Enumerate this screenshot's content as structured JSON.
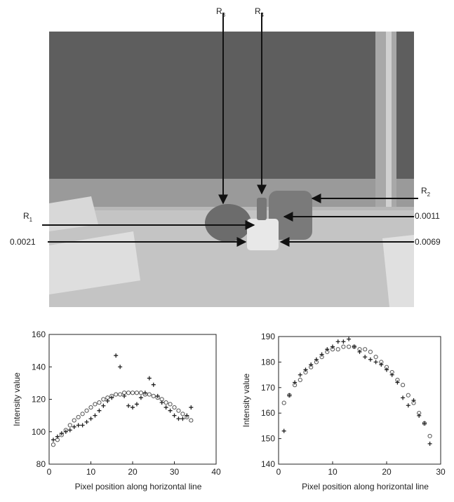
{
  "photo_labels": [
    {
      "text": "R",
      "sub": "3"
    },
    {
      "text": "R",
      "sub": "4"
    },
    {
      "text": "R",
      "sub": "2"
    },
    {
      "text": "R",
      "sub": "1"
    }
  ],
  "photo_values": [
    "0.0011",
    "0.0021",
    "0.0069"
  ],
  "chart_data": [
    {
      "type": "scatter",
      "xlabel": "Pixel position along horizontal line",
      "ylabel": "Intensity value",
      "xlim": [
        0,
        40
      ],
      "xticks": [
        0,
        10,
        20,
        30,
        40
      ],
      "ylim": [
        80,
        160
      ],
      "yticks": [
        80,
        100,
        120,
        140,
        160
      ],
      "x": [
        1,
        2,
        3,
        4,
        5,
        6,
        7,
        8,
        9,
        10,
        11,
        12,
        13,
        14,
        15,
        16,
        17,
        18,
        19,
        20,
        21,
        22,
        23,
        24,
        25,
        26,
        27,
        28,
        29,
        30,
        31,
        32,
        33,
        34
      ],
      "series": [
        {
          "marker": "circle",
          "color": "#555555",
          "values": [
            92,
            95,
            98,
            101,
            104,
            107,
            109,
            111,
            113,
            115,
            117,
            118,
            120,
            121,
            122,
            123,
            123,
            124,
            124,
            124,
            124,
            124,
            123,
            123,
            122,
            121,
            120,
            118,
            117,
            115,
            113,
            111,
            109,
            107
          ]
        },
        {
          "marker": "plus",
          "color": "#222222",
          "values": [
            95,
            97,
            99,
            100,
            101,
            103,
            104,
            104,
            106,
            108,
            110,
            113,
            116,
            119,
            121,
            147,
            140,
            122,
            116,
            115,
            117,
            121,
            124,
            133,
            129,
            122,
            118,
            115,
            113,
            110,
            108,
            108,
            110,
            115
          ]
        }
      ]
    },
    {
      "type": "scatter",
      "xlabel": "Pixel position along horizontal line",
      "ylabel": "Intensity value",
      "xlim": [
        0,
        30
      ],
      "xticks": [
        0,
        10,
        20,
        30
      ],
      "ylim": [
        140,
        190
      ],
      "yticks": [
        140,
        150,
        160,
        170,
        180,
        190
      ],
      "x": [
        1,
        2,
        3,
        4,
        5,
        6,
        7,
        8,
        9,
        10,
        11,
        12,
        13,
        14,
        15,
        16,
        17,
        18,
        19,
        20,
        21,
        22,
        23,
        24,
        25,
        26,
        27,
        28
      ],
      "series": [
        {
          "marker": "circle",
          "color": "#555555",
          "values": [
            164,
            167,
            171,
            173,
            176,
            178,
            180,
            182,
            184,
            185,
            185,
            186,
            186,
            186,
            185,
            185,
            184,
            182,
            180,
            178,
            176,
            173,
            171,
            167,
            164,
            160,
            156,
            151
          ]
        },
        {
          "marker": "plus",
          "color": "#222222",
          "values": [
            153,
            167,
            172,
            175,
            177,
            179,
            181,
            183,
            185,
            186,
            188,
            188,
            189,
            186,
            184,
            182,
            181,
            180,
            179,
            177,
            175,
            172,
            166,
            163,
            165,
            159,
            156,
            148
          ]
        }
      ]
    }
  ]
}
